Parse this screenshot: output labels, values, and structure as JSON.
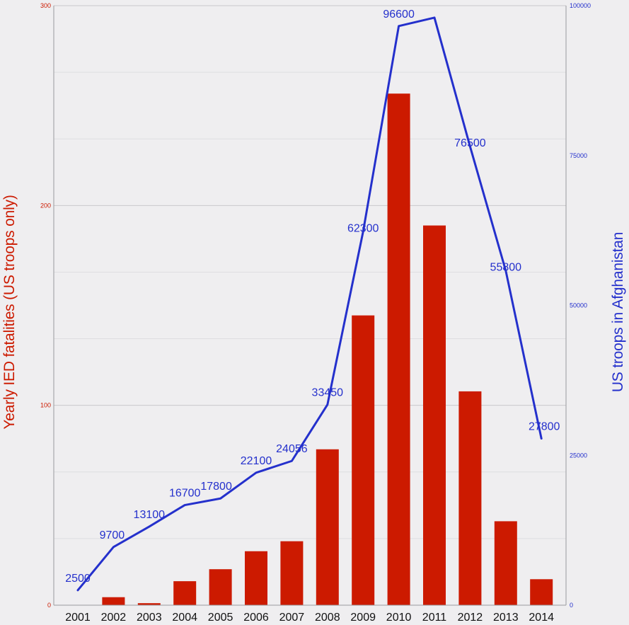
{
  "chart_data": {
    "type": "bar",
    "categories": [
      "2001",
      "2002",
      "2003",
      "2004",
      "2005",
      "2006",
      "2007",
      "2008",
      "2009",
      "2010",
      "2011",
      "2012",
      "2013",
      "2014"
    ],
    "series": [
      {
        "name": "Yearly IED fatalities (US troops only)",
        "type": "bar",
        "axis": "left",
        "values": [
          0,
          4,
          1,
          12,
          18,
          27,
          32,
          78,
          145,
          256,
          190,
          107,
          42,
          13
        ]
      },
      {
        "name": "US troops in Afghanistan",
        "type": "line",
        "axis": "right",
        "values": [
          2500,
          9700,
          13100,
          16700,
          17800,
          22100,
          24056,
          33450,
          62300,
          96600,
          98000,
          76500,
          55800,
          27800
        ],
        "data_labels": [
          "2500",
          "9700",
          "13100",
          "16700",
          "17800",
          "22100",
          "24056",
          "33450",
          "62300",
          "96600",
          "",
          "76500",
          "55800",
          "27800"
        ]
      }
    ],
    "ylabel": "Yearly IED fatalities (US troops only)",
    "y2label": "US troops in Afghanistan",
    "ylim": [
      0,
      300
    ],
    "y2lim": [
      0,
      100000
    ],
    "yticks": [
      "0",
      "100",
      "200",
      "300"
    ],
    "y2ticks": [
      "0",
      "25000",
      "50000",
      "75000",
      "100000"
    ],
    "grid": true,
    "legend": "none",
    "colors": {
      "bars": "#cc1a00",
      "line": "#2430cc",
      "left_axis": "#cc1a00",
      "right_axis": "#2430cc",
      "grid": "#c9c8cc",
      "minor_grid": "#dedde1",
      "axis_line": "#9a9a9e",
      "background": "#efeef0",
      "tick_text": "#111111"
    }
  }
}
